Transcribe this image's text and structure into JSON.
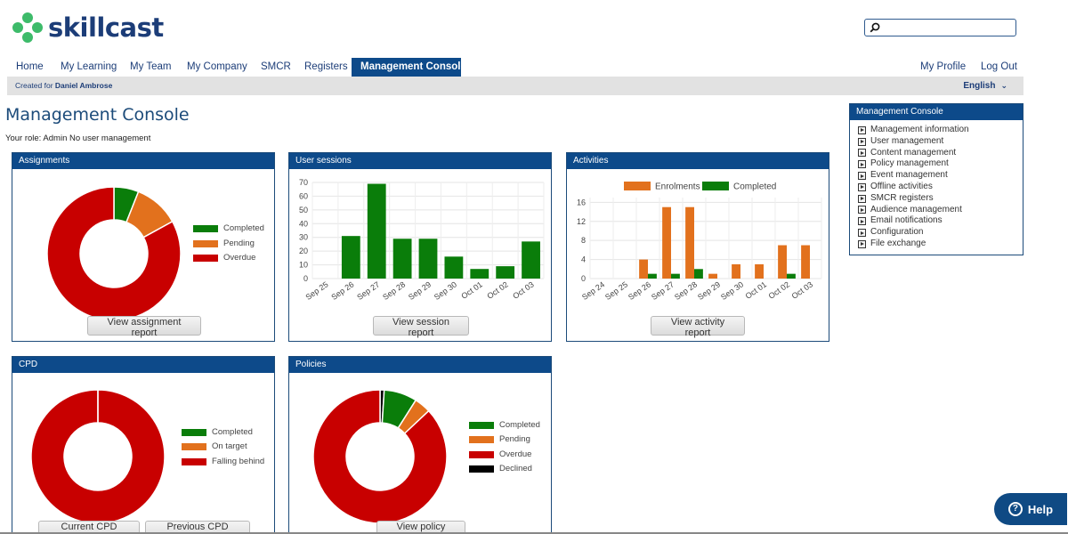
{
  "brand": {
    "name": "skillcast",
    "logo_color": "#3dbb6a",
    "text_color": "#1c3d78"
  },
  "search": {
    "placeholder": ""
  },
  "nav": {
    "items": [
      {
        "label": "Home"
      },
      {
        "label": "My Learning"
      },
      {
        "label": "My Team"
      },
      {
        "label": "My Company"
      },
      {
        "label": "SMCR"
      },
      {
        "label": "Registers"
      },
      {
        "label": "Management Console",
        "active": true
      }
    ],
    "right": [
      {
        "label": "My Profile"
      },
      {
        "label": "Log Out"
      }
    ]
  },
  "subbar": {
    "created_for_prefix": "Created for",
    "user": "Daniel Ambrose",
    "language": "English"
  },
  "page": {
    "title": "Management Console",
    "role_text": "Your role: Admin No user management"
  },
  "colors": {
    "completed": "#0a7d0a",
    "pending": "#e2711d",
    "overdue": "#c80000",
    "declined": "#000000",
    "header": "#0d4a8a"
  },
  "panels": {
    "assignments": {
      "title": "Assignments",
      "button": "View assignment report",
      "legend": [
        "Completed",
        "Pending",
        "Overdue"
      ],
      "chart_data": {
        "type": "pie",
        "categories": [
          "Completed",
          "Pending",
          "Overdue"
        ],
        "values": [
          6,
          11,
          83
        ]
      }
    },
    "user_sessions": {
      "title": "User sessions",
      "button": "View session report",
      "chart_data": {
        "type": "bar",
        "categories": [
          "Sep 25",
          "Sep 26",
          "Sep 27",
          "Sep 28",
          "Sep 29",
          "Sep 30",
          "Oct 01",
          "Oct 02",
          "Oct 03"
        ],
        "values": [
          0,
          31,
          69,
          29,
          29,
          16,
          7,
          9,
          27
        ],
        "ylim": [
          0,
          70
        ],
        "yticks": [
          0,
          10,
          20,
          30,
          40,
          50,
          60,
          70
        ],
        "grid": true
      }
    },
    "activities": {
      "title": "Activities",
      "button": "View activity report",
      "legend": [
        "Enrolments",
        "Completed"
      ],
      "chart_data": {
        "type": "bar",
        "categories": [
          "Sep 24",
          "Sep 25",
          "Sep 26",
          "Sep 27",
          "Sep 28",
          "Sep 29",
          "Sep 30",
          "Oct 01",
          "Oct 02",
          "Oct 03"
        ],
        "series": [
          {
            "name": "Enrolments",
            "values": [
              0,
              0,
              4,
              15,
              15,
              1,
              3,
              3,
              7,
              7
            ]
          },
          {
            "name": "Completed",
            "values": [
              0,
              0,
              1,
              1,
              2,
              0,
              0,
              0,
              1,
              0
            ]
          }
        ],
        "ylim": [
          0,
          17
        ],
        "yticks": [
          0,
          4,
          8,
          12,
          16
        ],
        "grid": true,
        "legend_position": "top"
      }
    },
    "cpd": {
      "title": "CPD",
      "buttons": [
        "Current CPD periods",
        "Previous CPD periods"
      ],
      "legend": [
        "Completed",
        "On target",
        "Falling behind"
      ],
      "chart_data": {
        "type": "pie",
        "categories": [
          "Completed",
          "On target",
          "Falling behind"
        ],
        "values": [
          0,
          0,
          100
        ]
      }
    },
    "policies": {
      "title": "Policies",
      "button": "View policy report",
      "legend": [
        "Completed",
        "Pending",
        "Overdue",
        "Declined"
      ],
      "chart_data": {
        "type": "pie",
        "categories": [
          "Declined",
          "Completed",
          "Pending",
          "Overdue"
        ],
        "values": [
          1,
          8,
          4,
          87
        ]
      }
    }
  },
  "side_menu": {
    "title": "Management Console",
    "items": [
      "Management information",
      "User management",
      "Content management",
      "Policy management",
      "Event management",
      "Offline activities",
      "SMCR registers",
      "Audience management",
      "Email notifications",
      "Configuration",
      "File exchange"
    ]
  },
  "help": {
    "label": "Help"
  }
}
